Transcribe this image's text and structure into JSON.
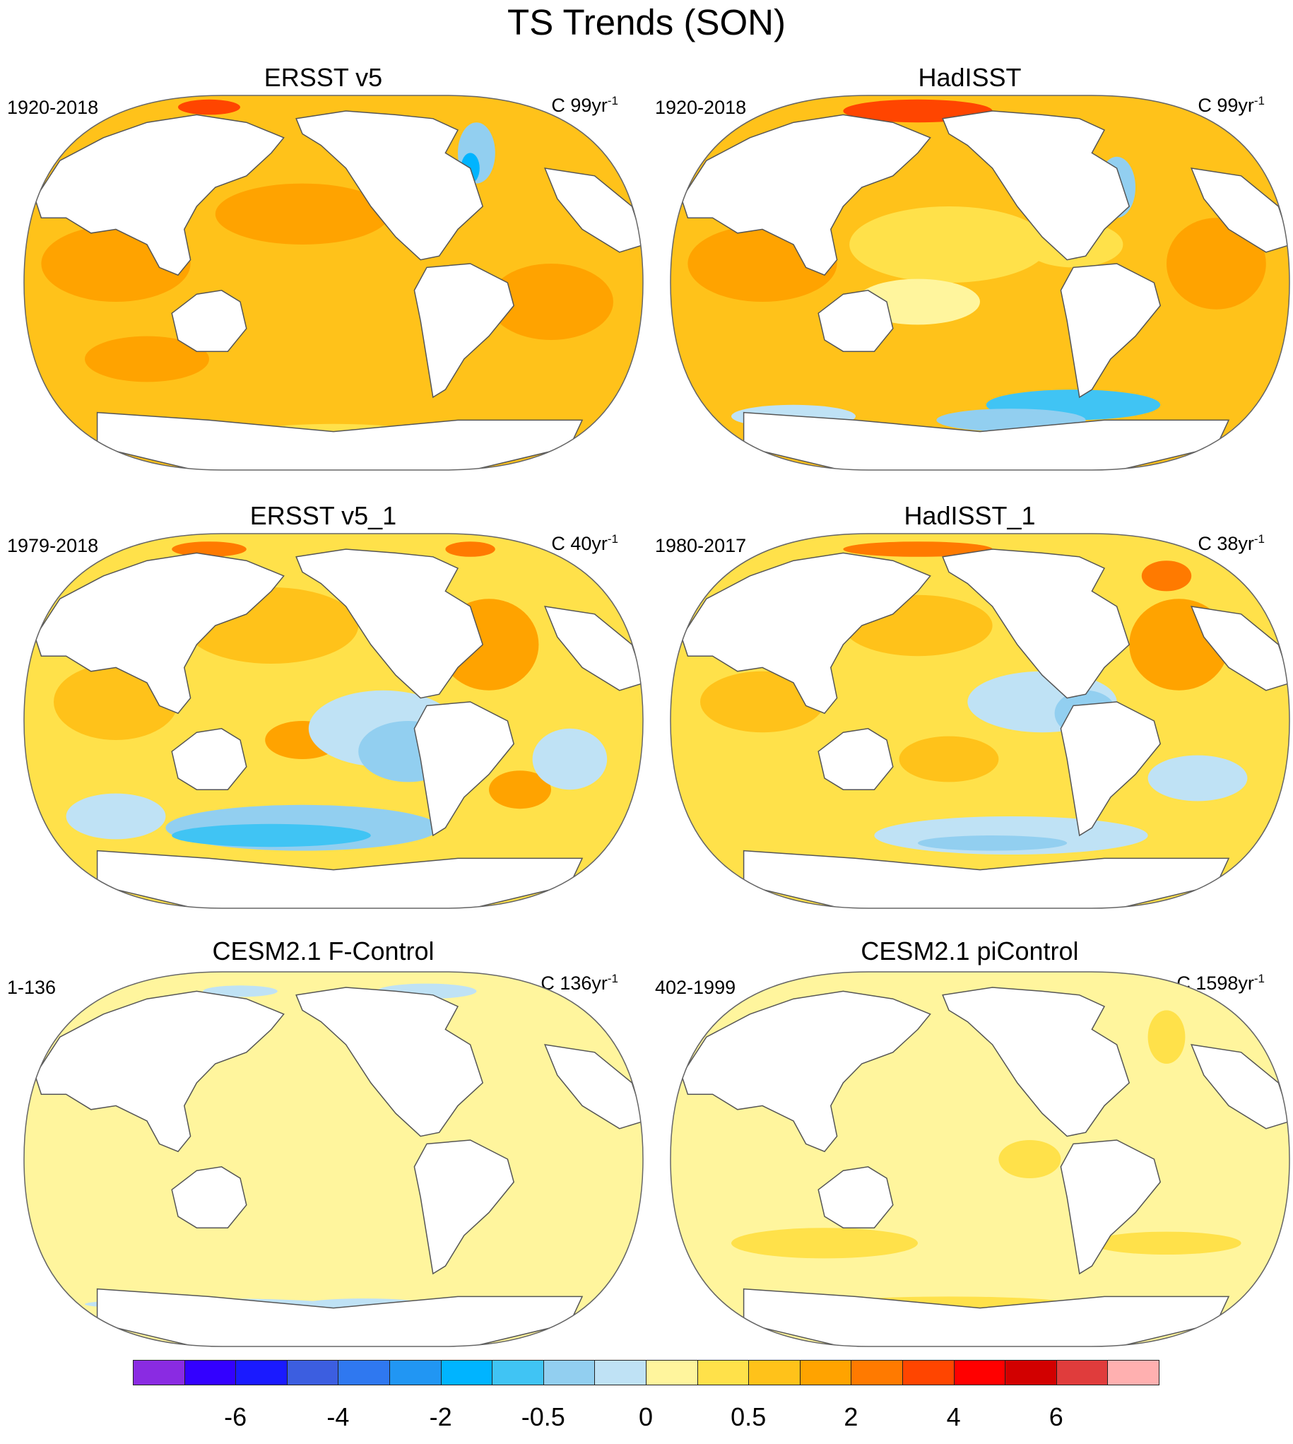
{
  "title": "TS Trends (SON)",
  "panels": [
    {
      "title": "ERSST v5",
      "period": "1920-2018",
      "units_prefix": "C 99yr",
      "units_exp": "-1",
      "style": "warm"
    },
    {
      "title": "HadISST",
      "period": "1920-2018",
      "units_prefix": "C 99yr",
      "units_exp": "-1",
      "style": "warm-noisy"
    },
    {
      "title": "ERSST v5_1",
      "period": "1979-2018",
      "units_prefix": "C 40yr",
      "units_exp": "-1",
      "style": "mixed"
    },
    {
      "title": "HadISST_1",
      "period": "1980-2017",
      "units_prefix": "C 38yr",
      "units_exp": "-1",
      "style": "mixed-noisy"
    },
    {
      "title": "CESM2.1 F-Control",
      "period": "1-136",
      "units_prefix": "C 136yr",
      "units_exp": "-1",
      "style": "flat"
    },
    {
      "title": "CESM2.1 piControl",
      "period": "402-1999",
      "units_prefix": "C 1598yr",
      "units_exp": "-1",
      "style": "flat-warm"
    }
  ],
  "colorbar": {
    "colors": [
      "#8a2be2",
      "#3300ff",
      "#1a1aff",
      "#3c5ee0",
      "#2f78f0",
      "#2196f3",
      "#00b4ff",
      "#40c4f4",
      "#92cff0",
      "#bfe2f5",
      "#fff59d",
      "#ffe14a",
      "#ffc21a",
      "#ffa300",
      "#ff7a00",
      "#ff4500",
      "#ff0000",
      "#d20000",
      "#e03c3c",
      "#ffb0b0"
    ],
    "tick_labels": [
      "-6",
      "-4",
      "-2",
      "-0.5",
      "0",
      "0.5",
      "2",
      "4",
      "6"
    ],
    "tick_boundaries": [
      2,
      4,
      6,
      8,
      10,
      12,
      14,
      16,
      18
    ]
  }
}
